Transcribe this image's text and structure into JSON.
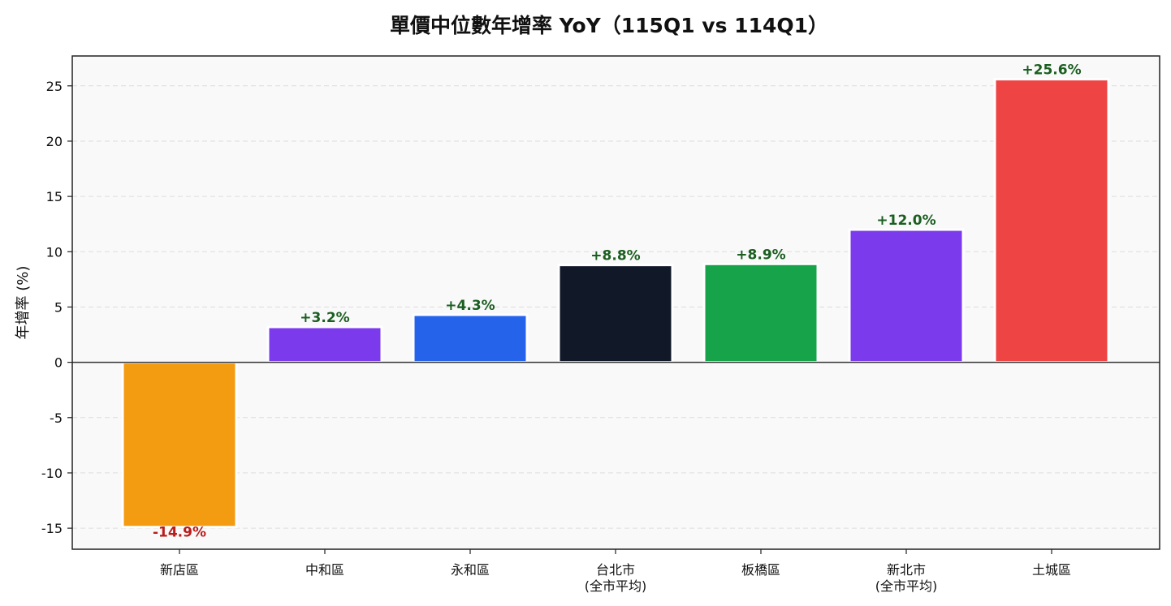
{
  "chart_data": {
    "type": "bar",
    "title": "單價中位數年增率 YoY（115Q1 vs 114Q1）",
    "ylabel": "年增率 (%)",
    "xlabel": "",
    "ylim": [
      -16.9,
      27.7
    ],
    "yticks": [
      -15,
      -10,
      -5,
      0,
      5,
      10,
      15,
      20,
      25
    ],
    "grid": "horizontal dashed",
    "categories": [
      [
        "新店區"
      ],
      [
        "中和區"
      ],
      [
        "永和區"
      ],
      [
        "台北市",
        "(全市平均)"
      ],
      [
        "板橋區"
      ],
      [
        "新北市",
        "(全市平均)"
      ],
      [
        "土城區"
      ]
    ],
    "values": [
      -14.9,
      3.2,
      4.3,
      8.8,
      8.9,
      12.0,
      25.6
    ],
    "data_labels": [
      "-14.9%",
      "+3.2%",
      "+4.3%",
      "+8.8%",
      "+8.9%",
      "+12.0%",
      "+25.6%"
    ],
    "colors": [
      "#f39c12",
      "#7c3aed",
      "#2563eb",
      "#111827",
      "#16a34a",
      "#7c3aed",
      "#ef4444"
    ],
    "label_colors": {
      "positive": "#1b5e20",
      "negative": "#b91c1c"
    },
    "plot_background": "#f9f9f9"
  }
}
